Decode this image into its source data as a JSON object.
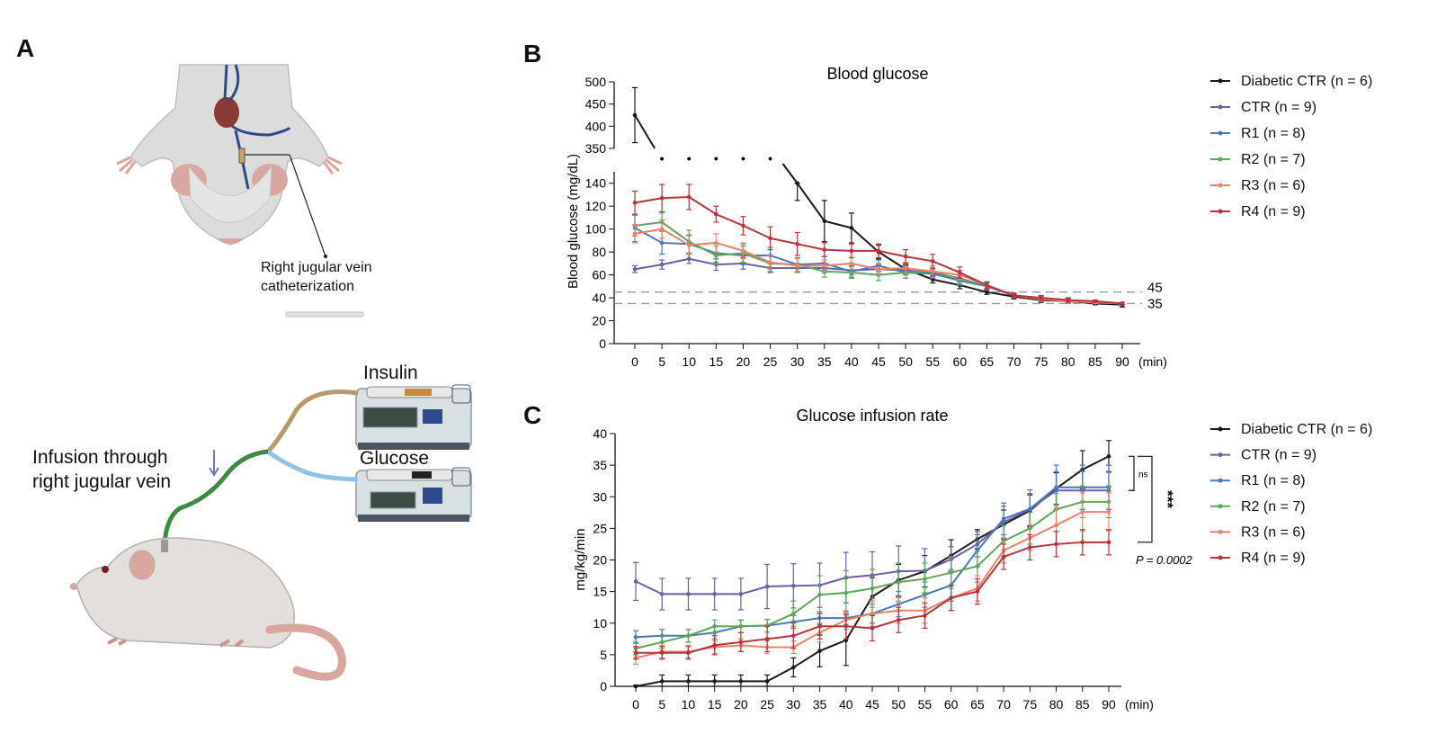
{
  "panels": {
    "a": "A",
    "b": "B",
    "c": "C"
  },
  "illustration": {
    "catheter_label_1": "Right jugular vein",
    "catheter_label_2": "catheterization",
    "insulin_label": "Insulin",
    "glucose_label": "Glucose",
    "infusion_label_1": "Infusion through",
    "infusion_label_2": "right jugular vein"
  },
  "colors": {
    "Diabetic CTR": "#1a1a1a",
    "CTR": "#6a5fa8",
    "R1": "#4a78b8",
    "R2": "#5aa85a",
    "R3": "#e8836a",
    "R4": "#b8343a"
  },
  "chart_data": [
    {
      "type": "line",
      "title": "Blood glucose",
      "ylabel": "Blood glucose (mg/dL)",
      "xunit": "(min)",
      "x": [
        0,
        5,
        10,
        15,
        20,
        25,
        30,
        35,
        40,
        45,
        50,
        55,
        60,
        65,
        70,
        75,
        80,
        85,
        90
      ],
      "ylim_lower": [
        0,
        150
      ],
      "ylim_upper": [
        350,
        500
      ],
      "yticks_lower": [
        0,
        20,
        40,
        60,
        80,
        100,
        120,
        140
      ],
      "yticks_upper": [
        350,
        400,
        450,
        500
      ],
      "reference_lines": [
        {
          "y": 45,
          "label": "45"
        },
        {
          "y": 35,
          "label": "35"
        }
      ],
      "legend": "right",
      "series": [
        {
          "name": "Diabetic CTR (n = 6)",
          "key": "Diabetic CTR",
          "values": [
            425,
            null,
            null,
            null,
            null,
            null,
            140,
            107,
            101,
            80,
            65,
            56,
            51,
            45,
            41,
            38,
            37,
            35,
            34
          ],
          "err": [
            62,
            null,
            null,
            null,
            null,
            null,
            15,
            18,
            13,
            6,
            4,
            3,
            3,
            2,
            2,
            2,
            1,
            1,
            2
          ]
        },
        {
          "name": "CTR (n = 9)",
          "key": "CTR",
          "values": [
            65,
            69,
            74,
            69,
            70,
            66,
            66,
            66,
            64,
            65,
            64,
            62,
            57,
            50,
            42,
            39,
            37,
            36,
            35
          ],
          "err": [
            3,
            4,
            4,
            5,
            5,
            4,
            4,
            4,
            4,
            4,
            4,
            4,
            3,
            3,
            2,
            2,
            2,
            1,
            1
          ]
        },
        {
          "name": "R1 (n = 8)",
          "key": "R1",
          "values": [
            101,
            88,
            87,
            79,
            77,
            77,
            69,
            70,
            63,
            68,
            62,
            61,
            55,
            50,
            42,
            39,
            37,
            36,
            35
          ],
          "err": [
            12,
            10,
            8,
            8,
            8,
            7,
            6,
            6,
            5,
            5,
            5,
            4,
            4,
            3,
            2,
            2,
            2,
            1,
            1
          ]
        },
        {
          "name": "R2 (n = 7)",
          "key": "R2",
          "values": [
            103,
            106,
            89,
            77,
            79,
            70,
            69,
            63,
            62,
            60,
            62,
            63,
            56,
            51,
            42,
            40,
            38,
            36,
            35
          ],
          "err": [
            9,
            8,
            10,
            8,
            8,
            7,
            6,
            5,
            5,
            5,
            5,
            5,
            4,
            3,
            2,
            2,
            2,
            1,
            1
          ]
        },
        {
          "name": "R3 (n = 6)",
          "key": "R3",
          "values": [
            96,
            100,
            86,
            88,
            81,
            71,
            68,
            68,
            70,
            65,
            66,
            63,
            60,
            51,
            42,
            39,
            37,
            36,
            35
          ],
          "err": [
            8,
            8,
            8,
            8,
            7,
            6,
            6,
            5,
            5,
            5,
            5,
            5,
            4,
            3,
            2,
            2,
            2,
            1,
            1
          ]
        },
        {
          "name": "R4 (n = 9)",
          "key": "R4",
          "values": [
            123,
            127,
            128,
            113,
            103,
            92,
            87,
            82,
            81,
            81,
            76,
            72,
            62,
            51,
            42,
            40,
            38,
            37,
            35
          ],
          "err": [
            10,
            12,
            11,
            7,
            8,
            10,
            10,
            6,
            6,
            6,
            6,
            6,
            5,
            3,
            2,
            2,
            2,
            1,
            1
          ]
        }
      ],
      "annotations": [
        "•",
        "•",
        "•",
        "•",
        "•"
      ]
    },
    {
      "type": "line",
      "title": "Glucose infusion rate",
      "ylabel": "mg/kg/min",
      "xunit": "(min)",
      "x": [
        0,
        5,
        10,
        15,
        20,
        25,
        30,
        35,
        40,
        45,
        50,
        55,
        60,
        65,
        70,
        75,
        80,
        85,
        90
      ],
      "ylim": [
        0,
        40
      ],
      "yticks": [
        0,
        5,
        10,
        15,
        20,
        25,
        30,
        35,
        40
      ],
      "legend": "right",
      "significance": [
        {
          "label": "ns"
        },
        {
          "label": "***"
        }
      ],
      "p_value": "P = 0.0002",
      "series": [
        {
          "name": "Diabetic CTR (n = 6)",
          "key": "Diabetic CTR",
          "values": [
            0,
            0.8,
            0.8,
            0.8,
            0.8,
            0.8,
            3,
            5.6,
            7.3,
            14.2,
            16.8,
            18.2,
            20.7,
            23.3,
            25.6,
            27.8,
            31.3,
            34.3,
            36.4
          ],
          "err": [
            0.2,
            1,
            1,
            1,
            1,
            1,
            1.5,
            2.5,
            4,
            3,
            2.5,
            2.5,
            2.5,
            1.5,
            2.3,
            2.5,
            2.5,
            3,
            2.5
          ]
        },
        {
          "name": "CTR (n = 9)",
          "key": "CTR",
          "values": [
            16.6,
            14.6,
            14.6,
            14.6,
            14.6,
            15.8,
            15.9,
            16,
            17.2,
            17.6,
            18.2,
            18.3,
            20.1,
            22.5,
            26,
            28,
            31,
            31,
            31
          ],
          "err": [
            3,
            2.5,
            2.5,
            2.5,
            2.5,
            3.5,
            3.5,
            3.5,
            4,
            3.7,
            4,
            3.5,
            2,
            2,
            2.5,
            2.5,
            3,
            3,
            3
          ]
        },
        {
          "name": "R1 (n = 8)",
          "key": "R1",
          "values": [
            7.8,
            8,
            8,
            8.5,
            9.5,
            9.6,
            10.2,
            10.8,
            10.8,
            11.5,
            13,
            14.5,
            16,
            21.5,
            26.5,
            28.1,
            31.5,
            31.5,
            31.5
          ],
          "err": [
            1,
            1,
            1,
            1,
            1,
            1,
            1,
            1,
            1,
            1.5,
            2,
            2,
            2.5,
            2.5,
            2.5,
            3,
            3.5,
            3.5,
            3.5
          ]
        },
        {
          "name": "R2 (n = 7)",
          "key": "R2",
          "values": [
            6,
            7,
            8,
            9.5,
            9.5,
            9.6,
            11.5,
            14.5,
            14.8,
            15.5,
            16.5,
            17,
            18,
            19,
            23,
            25,
            28,
            29.2,
            29.2
          ],
          "err": [
            1,
            1,
            1,
            1,
            1,
            1,
            2,
            3,
            3.5,
            3,
            3,
            2.5,
            2.5,
            2.5,
            2.5,
            2.5,
            2.5,
            2.5,
            2.5
          ]
        },
        {
          "name": "R3 (n = 6)",
          "key": "R3",
          "values": [
            4.5,
            5.5,
            5.5,
            6.2,
            6.5,
            6.2,
            6.2,
            8.5,
            10.5,
            11.5,
            12,
            12,
            14,
            15.5,
            21.5,
            23.5,
            25.5,
            27.6,
            27.6
          ],
          "err": [
            1,
            1,
            1,
            1,
            1,
            1,
            1,
            1.5,
            1.5,
            2,
            2,
            2,
            2,
            2,
            2,
            2,
            3,
            3,
            3
          ]
        },
        {
          "name": "R4 (n = 9)",
          "key": "R4",
          "values": [
            5.3,
            5.3,
            5.3,
            6.5,
            7,
            7.5,
            8,
            9.5,
            9.5,
            9.2,
            10.5,
            11.2,
            14,
            15,
            20.5,
            22,
            22.5,
            22.8,
            22.8
          ],
          "err": [
            1,
            1,
            1,
            1.5,
            1.5,
            2,
            2,
            2,
            2,
            2,
            2,
            2,
            2,
            2,
            2,
            2,
            2,
            2,
            2
          ]
        }
      ]
    }
  ]
}
